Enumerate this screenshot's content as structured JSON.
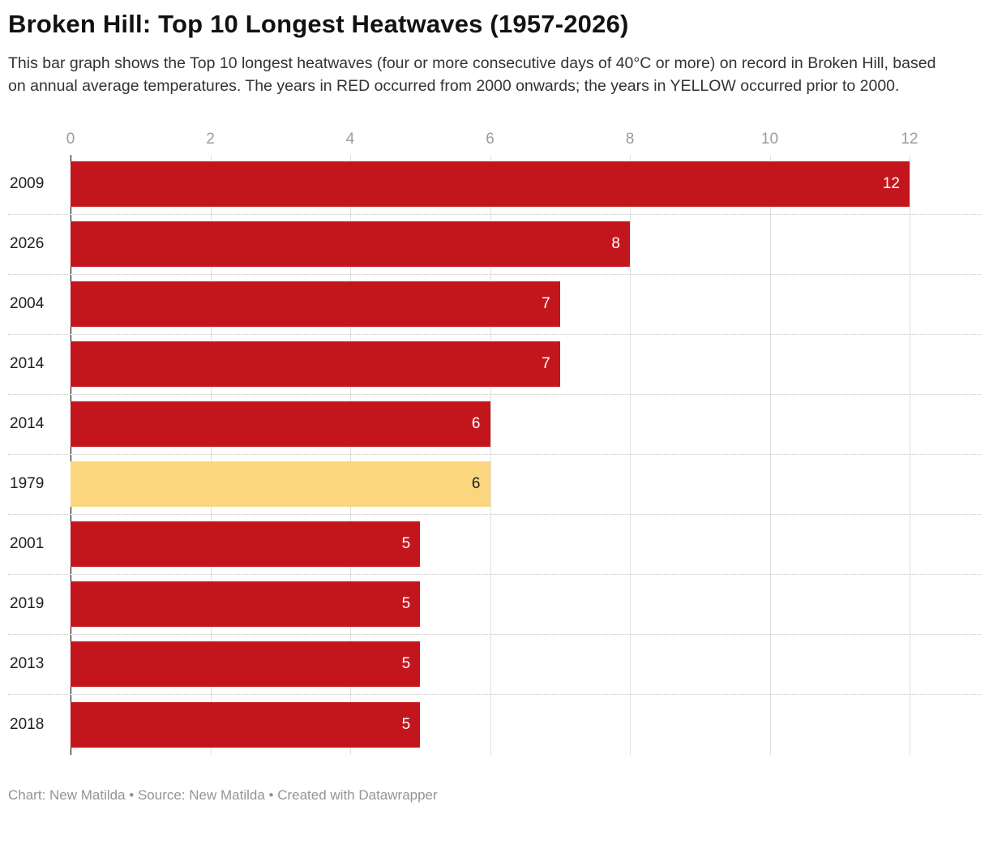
{
  "header": {
    "title": "Broken Hill: Top 10 Longest Heatwaves (1957-2026)",
    "description": "This bar graph shows the Top 10 longest heatwaves (four or more consecutive days of 40°C or more) on record in Broken Hill, based on annual average temperatures. The years in RED occurred from 2000 onwards; the years in YELLOW occurred prior to 2000."
  },
  "chart_data": {
    "type": "bar",
    "orientation": "horizontal",
    "title": "Broken Hill: Top 10 Longest Heatwaves (1957-2026)",
    "xlabel": "",
    "ylabel": "",
    "categories": [
      "2009",
      "2026",
      "2004",
      "2014",
      "2014",
      "1979",
      "2001",
      "2019",
      "2013",
      "2018"
    ],
    "values": [
      12,
      8,
      7,
      7,
      6,
      6,
      5,
      5,
      5,
      5
    ],
    "bar_color_keys": [
      "red",
      "red",
      "red",
      "red",
      "red",
      "yellow",
      "red",
      "red",
      "red",
      "red"
    ],
    "colors": {
      "red": "#c3161c",
      "yellow": "#fbd67f"
    },
    "color_legend": {
      "red": "years from 2000 onwards",
      "yellow": "years prior to 2000"
    },
    "xlim": [
      0,
      12
    ],
    "x_ticks": [
      0,
      2,
      4,
      6,
      8,
      10,
      12
    ],
    "grid": "vertical",
    "value_labels": "inside-end",
    "axis_position": "top"
  },
  "footer": {
    "text": "Chart: New Matilda • Source: New Matilda • Created with Datawrapper"
  }
}
